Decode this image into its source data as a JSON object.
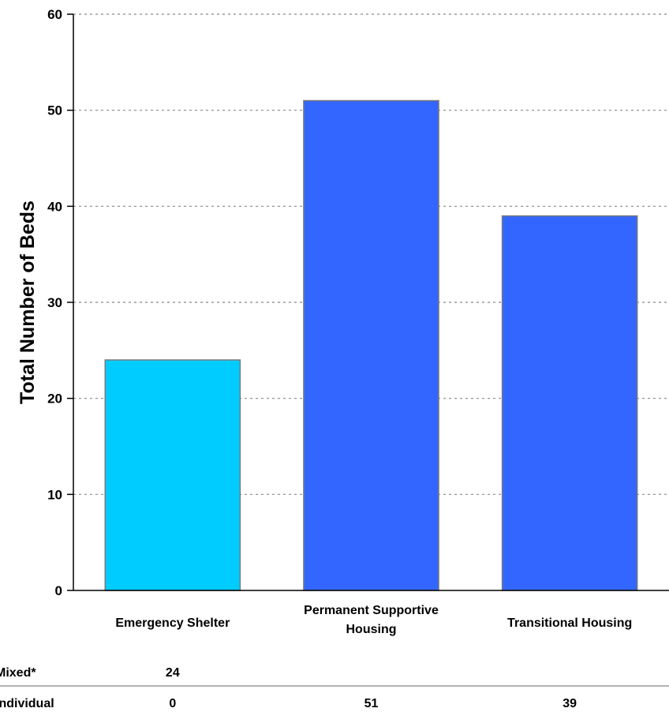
{
  "chart_data": {
    "type": "bar",
    "title": "",
    "xlabel": "",
    "ylabel": "Total Number of Beds",
    "ylim": [
      0,
      60
    ],
    "yticks": [
      0,
      10,
      20,
      30,
      40,
      50,
      60
    ],
    "grid": true,
    "categories": [
      [
        "Emergency Shelter"
      ],
      [
        "Permanent Supportive",
        "Housing"
      ],
      [
        "Transitional Housing"
      ]
    ],
    "values": [
      24,
      51,
      39
    ],
    "bar_colors": [
      "#00CCFF",
      "#3366FF",
      "#3366FF"
    ],
    "table": {
      "rows": [
        {
          "label": "Mixed*",
          "values": [
            "24",
            "",
            ""
          ]
        },
        {
          "label": "Individual",
          "values": [
            "0",
            "51",
            "39"
          ]
        }
      ]
    }
  }
}
